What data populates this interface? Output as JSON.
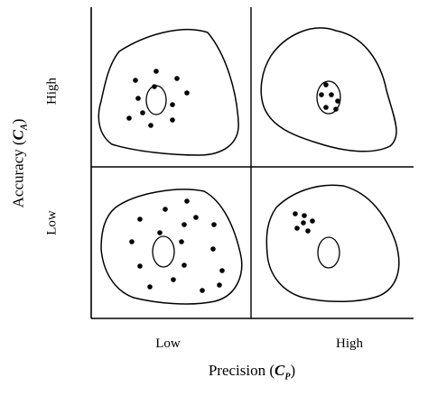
{
  "axes": {
    "x_title": "Precision",
    "x_symbol": "C",
    "x_symbol_sub": "P",
    "y_title": "Accuracy",
    "y_symbol": "C",
    "y_symbol_sub": "A",
    "x_ticks": [
      "Low",
      "High"
    ],
    "y_ticks": [
      "High",
      "Low"
    ]
  }
}
